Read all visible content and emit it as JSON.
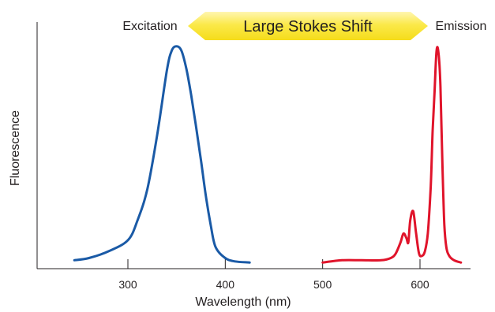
{
  "chart_data": {
    "type": "line",
    "title": "",
    "xlabel": "Wavelength (nm)",
    "ylabel": "Fluorescence",
    "xlim": [
      200,
      650
    ],
    "ylim": [
      0,
      1
    ],
    "x_ticks": [
      300,
      400,
      500,
      600
    ],
    "x_tick_labels": [
      "300",
      "400",
      "500",
      "600"
    ],
    "grid": false,
    "annotation": {
      "text": "Large Stokes Shift",
      "from_x": 350,
      "to_x": 520,
      "color": "#f5e42a"
    },
    "series": [
      {
        "name": "Excitation",
        "color": "#1a5aa6",
        "x": [
          245,
          260,
          280,
          300,
          310,
          320,
          330,
          340,
          345,
          350,
          355,
          360,
          365,
          370,
          375,
          380,
          385,
          390,
          400,
          410,
          425
        ],
        "y": [
          0.02,
          0.03,
          0.06,
          0.11,
          0.2,
          0.34,
          0.58,
          0.87,
          0.96,
          0.98,
          0.96,
          0.88,
          0.76,
          0.62,
          0.47,
          0.31,
          0.18,
          0.08,
          0.03,
          0.015,
          0.01
        ]
      },
      {
        "name": "Emission",
        "color": "#e0142b",
        "x": [
          500,
          520,
          540,
          560,
          570,
          575,
          580,
          583,
          586,
          588,
          590,
          593,
          596,
          599,
          602,
          605,
          608,
          611,
          613,
          615,
          617,
          619,
          621,
          623,
          625,
          627,
          630,
          635,
          642
        ],
        "y": [
          0.01,
          0.02,
          0.02,
          0.02,
          0.03,
          0.05,
          0.1,
          0.14,
          0.12,
          0.1,
          0.2,
          0.24,
          0.14,
          0.05,
          0.04,
          0.06,
          0.14,
          0.35,
          0.6,
          0.78,
          0.96,
          0.95,
          0.8,
          0.45,
          0.18,
          0.08,
          0.04,
          0.02,
          0.01
        ]
      }
    ]
  }
}
